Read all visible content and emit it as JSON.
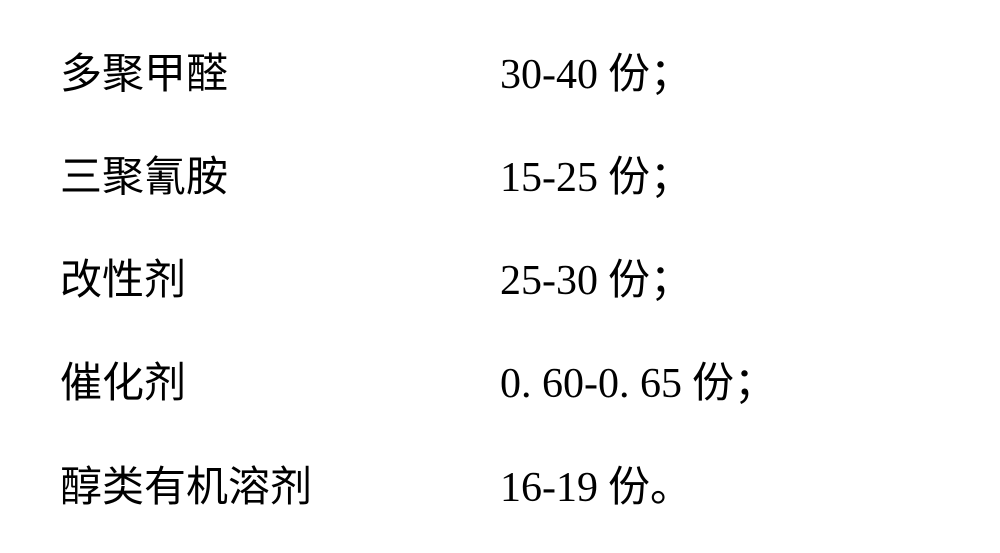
{
  "ingredients": {
    "type": "table",
    "font_size": 42,
    "text_color": "#000000",
    "background_color": "#ffffff",
    "label_font": "SimSun",
    "value_font": "Times New Roman",
    "unit_label": "份",
    "rows": [
      {
        "name": "多聚甲醛",
        "range": "30-40",
        "unit": "份",
        "terminator": "；"
      },
      {
        "name": "三聚氰胺",
        "range": "15-25",
        "unit": "份",
        "terminator": "；"
      },
      {
        "name": "改性剂",
        "range": "25-30",
        "unit": "份",
        "terminator": "；"
      },
      {
        "name": "催化剂",
        "range": "0. 60-0. 65",
        "unit": "份",
        "terminator": "；"
      },
      {
        "name": "醇类有机溶剂",
        "range": "16-19",
        "unit": "份",
        "terminator": "。"
      }
    ]
  }
}
